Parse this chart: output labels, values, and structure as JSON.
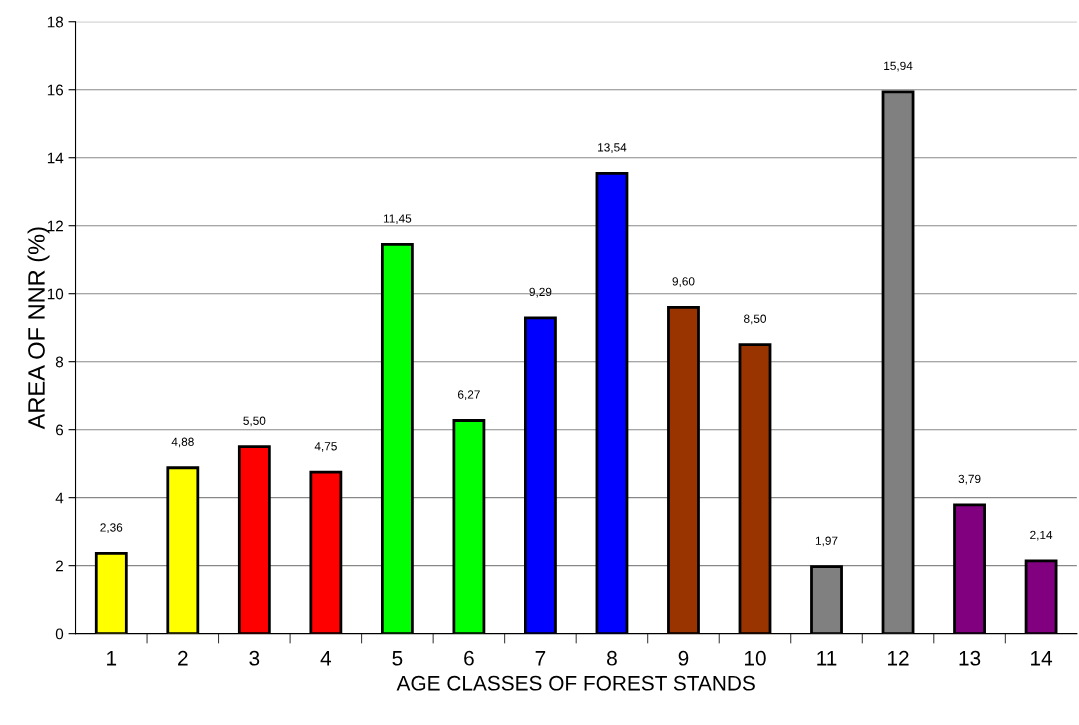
{
  "chart_data": {
    "type": "bar",
    "xlabel": "AGE CLASSES OF FOREST STANDS",
    "ylabel": "AREA OF NNR (%)",
    "categories": [
      "1",
      "2",
      "3",
      "4",
      "5",
      "6",
      "7",
      "8",
      "9",
      "10",
      "11",
      "12",
      "13",
      "14"
    ],
    "values": [
      2.36,
      4.88,
      5.5,
      4.75,
      11.45,
      6.27,
      9.29,
      13.54,
      9.6,
      8.5,
      1.97,
      15.94,
      3.79,
      2.14
    ],
    "value_labels": [
      "2,36",
      "4,88",
      "5,50",
      "4,75",
      "11,45",
      "6,27",
      "9,29",
      "13,54",
      "9,60",
      "8,50",
      "1,97",
      "15,94",
      "3,79",
      "2,14"
    ],
    "colors": [
      "#ffff00",
      "#ffff00",
      "#ff0000",
      "#ff0000",
      "#00ff00",
      "#00ff00",
      "#0000ff",
      "#0000ff",
      "#993300",
      "#993300",
      "#808080",
      "#808080",
      "#800080",
      "#800080"
    ],
    "ylim": [
      0,
      18
    ],
    "yticks": [
      0,
      2,
      4,
      6,
      8,
      10,
      12,
      14,
      16,
      18
    ],
    "grid": "y",
    "legend": false
  }
}
